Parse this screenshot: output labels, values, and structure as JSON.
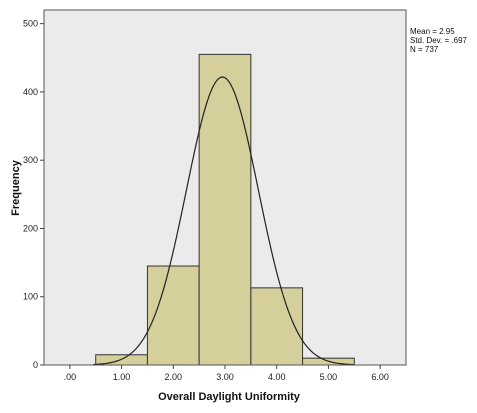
{
  "chart_data": {
    "type": "bar",
    "subtype": "histogram",
    "title": "",
    "xlabel": "Overall Daylight Uniformity",
    "ylabel": "Frequency",
    "xlim": [
      -0.5,
      6.5
    ],
    "ylim": [
      0,
      520
    ],
    "x_ticks": [
      0,
      1,
      2,
      3,
      4,
      5,
      6
    ],
    "x_tick_labels": [
      ".00",
      "1.00",
      "2.00",
      "3.00",
      "4.00",
      "5.00",
      "6.00"
    ],
    "y_ticks": [
      0,
      100,
      200,
      300,
      400,
      500
    ],
    "y_tick_labels": [
      "0",
      "100",
      "200",
      "300",
      "400",
      "500"
    ],
    "bin_width": 1,
    "bins": [
      {
        "center": 1,
        "value": 15
      },
      {
        "center": 2,
        "value": 145
      },
      {
        "center": 3,
        "value": 455
      },
      {
        "center": 4,
        "value": 113
      },
      {
        "center": 5,
        "value": 10
      }
    ],
    "normal_curve": {
      "mean": 2.95,
      "sd": 0.697,
      "n": 737
    },
    "stats": {
      "mean_label": "Mean = 2.95",
      "sd_label": "Std. Dev. = .697",
      "n_label": "N = 737"
    },
    "grid": false,
    "colors": {
      "plot_background": "#ebebeb",
      "bar_fill": "#d4cf9b",
      "bar_stroke": "#333333",
      "curve": "#222222",
      "frame": "#555555"
    }
  }
}
